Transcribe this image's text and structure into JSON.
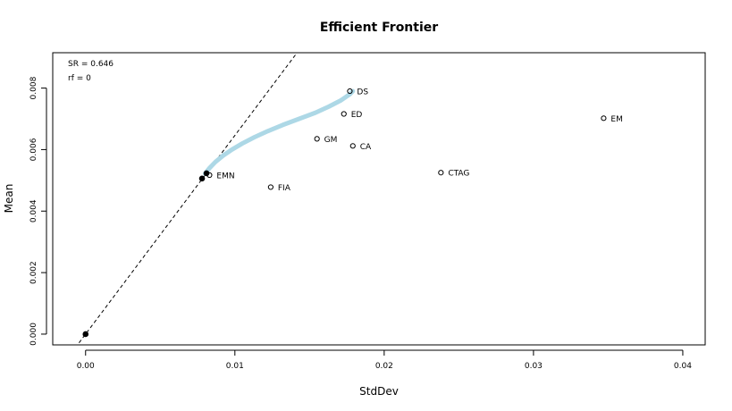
{
  "chart_data": {
    "type": "scatter",
    "title": "Efficient Frontier",
    "xlabel": "StdDev",
    "ylabel": "Mean",
    "xlim": [
      -0.0022,
      0.0415
    ],
    "ylim": [
      -0.00035,
      0.00915
    ],
    "x_ticks": [
      0.0,
      0.01,
      0.02,
      0.03,
      0.04
    ],
    "x_tick_labels": [
      "0.00",
      "0.01",
      "0.02",
      "0.03",
      "0.04"
    ],
    "y_ticks": [
      0.0,
      0.002,
      0.004,
      0.006,
      0.008
    ],
    "y_tick_labels": [
      "0.000",
      "0.002",
      "0.004",
      "0.006",
      "0.008"
    ],
    "grid": false,
    "annotations": [
      "SR = 0.646",
      "rf = 0"
    ],
    "sharpe_ratio": 0.646,
    "risk_free": 0,
    "frontier_color": "#add8e6",
    "assets": [
      {
        "label": "DS",
        "x": 0.0177,
        "y": 0.0079
      },
      {
        "label": "ED",
        "x": 0.0173,
        "y": 0.00716
      },
      {
        "label": "EM",
        "x": 0.0347,
        "y": 0.00702
      },
      {
        "label": "GM",
        "x": 0.0155,
        "y": 0.00635
      },
      {
        "label": "CA",
        "x": 0.0179,
        "y": 0.00612
      },
      {
        "label": "CTAG",
        "x": 0.0238,
        "y": 0.00525
      },
      {
        "label": "EMN",
        "x": 0.0083,
        "y": 0.00517
      },
      {
        "label": "FIA",
        "x": 0.0124,
        "y": 0.00478
      }
    ],
    "frontier": [
      {
        "x": 0.008,
        "y": 0.00522
      },
      {
        "x": 0.0083,
        "y": 0.0054
      },
      {
        "x": 0.0087,
        "y": 0.0056
      },
      {
        "x": 0.0092,
        "y": 0.0058
      },
      {
        "x": 0.0098,
        "y": 0.006
      },
      {
        "x": 0.0105,
        "y": 0.0062
      },
      {
        "x": 0.0113,
        "y": 0.0064
      },
      {
        "x": 0.0122,
        "y": 0.0066
      },
      {
        "x": 0.0132,
        "y": 0.0068
      },
      {
        "x": 0.0143,
        "y": 0.007
      },
      {
        "x": 0.0154,
        "y": 0.0072
      },
      {
        "x": 0.0163,
        "y": 0.0074
      },
      {
        "x": 0.0171,
        "y": 0.0076
      },
      {
        "x": 0.0177,
        "y": 0.0078
      },
      {
        "x": 0.0179,
        "y": 0.0079
      }
    ],
    "special_points": [
      {
        "label": "risk-free",
        "x": 0.0,
        "y": 0.0
      },
      {
        "label": "min-variance",
        "x": 0.0078,
        "y": 0.00506
      },
      {
        "label": "tangency",
        "x": 0.0081,
        "y": 0.00523
      }
    ]
  }
}
